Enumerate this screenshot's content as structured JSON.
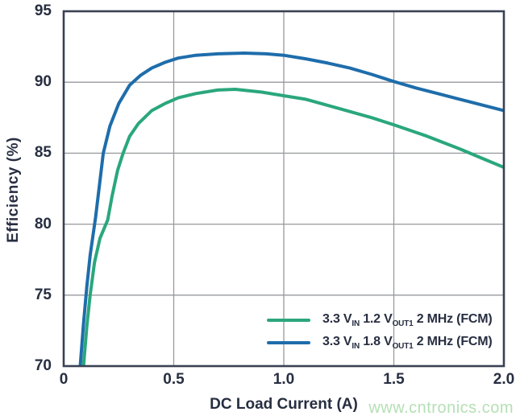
{
  "chart_data": {
    "type": "line",
    "title": "",
    "xlabel": "DC Load Current (A)",
    "ylabel": "Efficiency (%)",
    "xlim": [
      0,
      2
    ],
    "ylim": [
      70,
      95
    ],
    "xticks": {
      "values": [
        0,
        0.5,
        1,
        1.5,
        2
      ],
      "labels": [
        "0",
        "0.5",
        "1.0",
        "1.5",
        "2.0"
      ]
    },
    "yticks": {
      "values": [
        70,
        75,
        80,
        85,
        90,
        95
      ],
      "labels": [
        "70",
        "75",
        "80",
        "85",
        "90",
        "95"
      ]
    },
    "grid": true,
    "legend_position": "inside bottom-right",
    "series": [
      {
        "name": "3.3 VIN 1.2 VOUT1 2 MHz (FCM)",
        "color": "#2aa77c",
        "points": [
          [
            0.09,
            70
          ],
          [
            0.105,
            72.8
          ],
          [
            0.12,
            75.0
          ],
          [
            0.14,
            77.3
          ],
          [
            0.165,
            79.0
          ],
          [
            0.2,
            80.3
          ],
          [
            0.22,
            82.0
          ],
          [
            0.245,
            83.8
          ],
          [
            0.27,
            85.0
          ],
          [
            0.3,
            86.2
          ],
          [
            0.34,
            87.1
          ],
          [
            0.4,
            88.0
          ],
          [
            0.46,
            88.5
          ],
          [
            0.52,
            88.9
          ],
          [
            0.6,
            89.2
          ],
          [
            0.7,
            89.45
          ],
          [
            0.78,
            89.5
          ],
          [
            0.9,
            89.3
          ],
          [
            1.0,
            89.05
          ],
          [
            1.1,
            88.8
          ],
          [
            1.25,
            88.15
          ],
          [
            1.4,
            87.5
          ],
          [
            1.5,
            87.0
          ],
          [
            1.65,
            86.2
          ],
          [
            1.8,
            85.3
          ],
          [
            1.9,
            84.65
          ],
          [
            2.0,
            84.0
          ]
        ]
      },
      {
        "name": "3.3 VIN 1.8 VOUT1 2 MHz (FCM)",
        "color": "#1e6dab",
        "points": [
          [
            0.075,
            70
          ],
          [
            0.09,
            73.0
          ],
          [
            0.105,
            75.6
          ],
          [
            0.12,
            77.8
          ],
          [
            0.145,
            80.5
          ],
          [
            0.18,
            85.0
          ],
          [
            0.21,
            86.9
          ],
          [
            0.25,
            88.5
          ],
          [
            0.3,
            89.8
          ],
          [
            0.35,
            90.5
          ],
          [
            0.4,
            91.0
          ],
          [
            0.46,
            91.4
          ],
          [
            0.52,
            91.7
          ],
          [
            0.6,
            91.9
          ],
          [
            0.7,
            92.0
          ],
          [
            0.82,
            92.05
          ],
          [
            0.92,
            92.0
          ],
          [
            1.0,
            91.9
          ],
          [
            1.1,
            91.65
          ],
          [
            1.2,
            91.35
          ],
          [
            1.3,
            91.0
          ],
          [
            1.4,
            90.55
          ],
          [
            1.5,
            90.05
          ],
          [
            1.6,
            89.6
          ],
          [
            1.7,
            89.2
          ],
          [
            1.8,
            88.8
          ],
          [
            1.9,
            88.4
          ],
          [
            2.0,
            88.0
          ]
        ]
      }
    ]
  },
  "legend": {
    "items": [
      {
        "series": 0,
        "color": "#2aa77c",
        "parts": [
          {
            "text": "3.3 V"
          },
          {
            "text": "IN",
            "sub": true
          },
          {
            "text": " 1.2 V"
          },
          {
            "text": "OUT1",
            "sub": true
          },
          {
            "text": " 2 MHz (FCM)"
          }
        ]
      },
      {
        "series": 1,
        "color": "#1e6dab",
        "parts": [
          {
            "text": "3.3 V"
          },
          {
            "text": "IN",
            "sub": true
          },
          {
            "text": " 1.8 V"
          },
          {
            "text": "OUT1",
            "sub": true
          },
          {
            "text": " 2 MHz (FCM)"
          }
        ]
      }
    ]
  },
  "watermark": {
    "text": "www.cntronics.com",
    "color": "#b5e0b5"
  },
  "colors": {
    "text": "#272e41",
    "grid": "#97999d",
    "border": "#3a4154",
    "background": "#ffffff"
  }
}
